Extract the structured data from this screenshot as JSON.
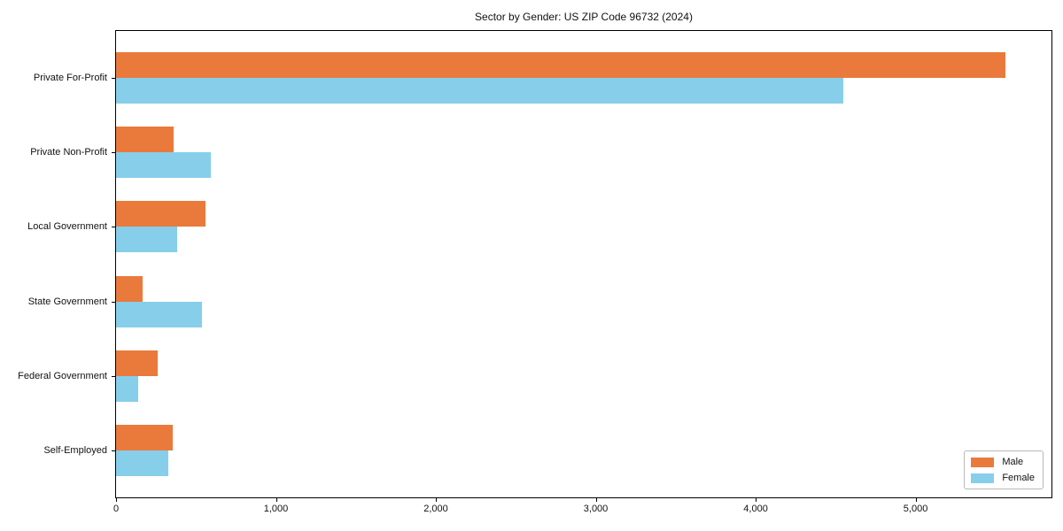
{
  "chart_data": {
    "type": "bar",
    "orientation": "horizontal",
    "title": "Sector by Gender: US ZIP Code 96732 (2024)",
    "categories": [
      "Private For-Profit",
      "Private Non-Profit",
      "Local Government",
      "State Government",
      "Federal Government",
      "Self-Employed"
    ],
    "series": [
      {
        "name": "Male",
        "color": "#e97a3c",
        "values": [
          5560,
          360,
          560,
          165,
          260,
          355
        ]
      },
      {
        "name": "Female",
        "color": "#87ceeb",
        "values": [
          4550,
          590,
          380,
          540,
          140,
          325
        ]
      }
    ],
    "xlim": [
      0,
      5850
    ],
    "xticks": [
      0,
      1000,
      2000,
      3000,
      4000,
      5000
    ],
    "xtick_labels": [
      "0",
      "1,000",
      "2,000",
      "3,000",
      "4,000",
      "5,000"
    ],
    "grid": false,
    "legend_position": "lower right",
    "xlabel": "",
    "ylabel": ""
  }
}
